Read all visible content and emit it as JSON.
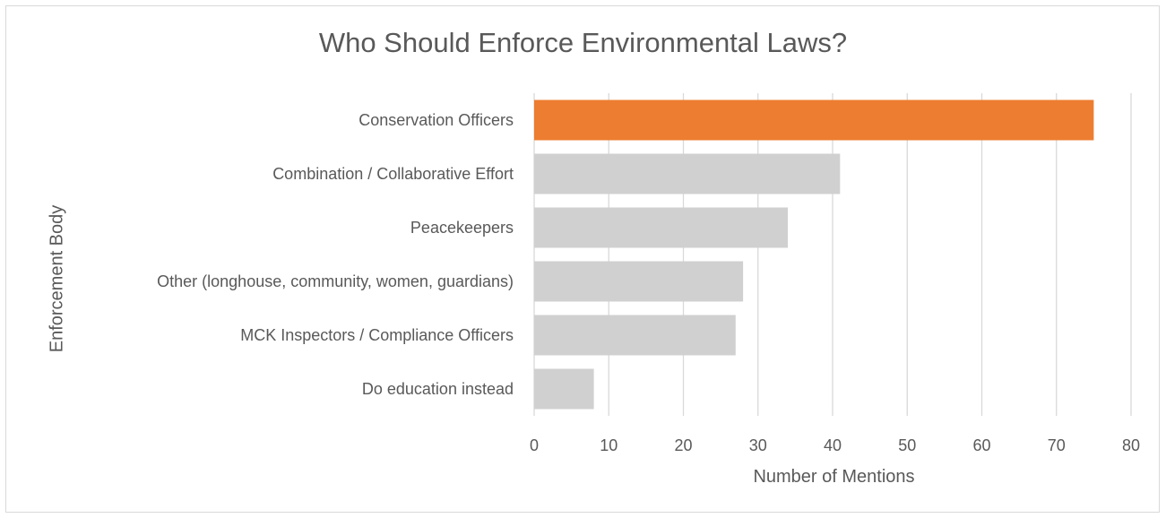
{
  "chart_data": {
    "type": "bar",
    "orientation": "horizontal",
    "title": "Who Should Enforce Environmental Laws?",
    "xlabel": "Number of Mentions",
    "ylabel": "Enforcement Body",
    "categories": [
      "Conservation Officers",
      "Combination / Collaborative Effort",
      "Peacekeepers",
      "Other (longhouse, community, women, guardians)",
      "MCK Inspectors / Compliance Officers",
      "Do education instead"
    ],
    "values": [
      75,
      41,
      34,
      28,
      27,
      8
    ],
    "bar_colors": [
      "#ED7D31",
      "#D0D0D0",
      "#D0D0D0",
      "#D0D0D0",
      "#D0D0D0",
      "#D0D0D0"
    ],
    "xlim": [
      0,
      80
    ],
    "xticks": [
      0,
      10,
      20,
      30,
      40,
      50,
      60,
      70,
      80
    ],
    "grid": "vertical",
    "legend": "none"
  },
  "colors": {
    "highlight": "#ED7D31",
    "bar": "#D0D0D0",
    "grid": "#D9D9D9",
    "text": "#595959"
  }
}
